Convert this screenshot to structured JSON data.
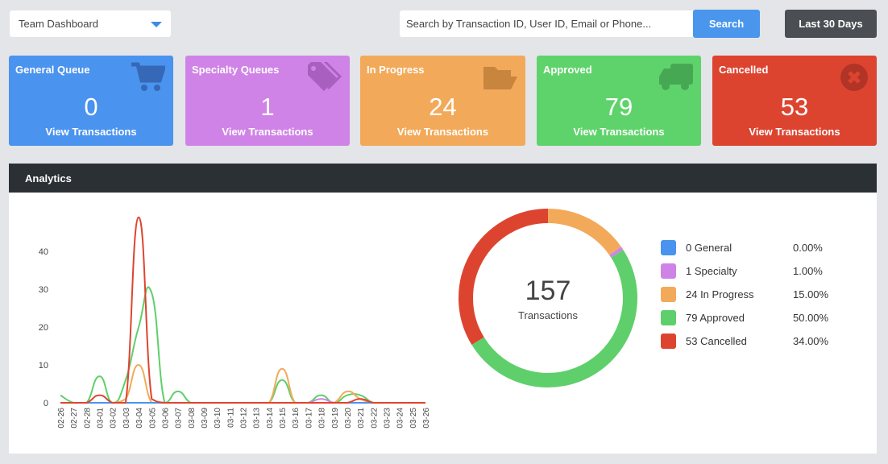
{
  "toolbar": {
    "dashboard_select": "Team Dashboard",
    "search_placeholder": "Search by Transaction ID, User ID, Email or Phone...",
    "search_button": "Search",
    "range_button": "Last 30 Days"
  },
  "cards": [
    {
      "title": "General Queue",
      "count": "0",
      "link": "View Transactions",
      "color": "#4a93ee",
      "icon": "cart-icon"
    },
    {
      "title": "Specialty Queues",
      "count": "1",
      "link": "View Transactions",
      "color": "#d083e6",
      "icon": "tags-icon"
    },
    {
      "title": "In Progress",
      "count": "24",
      "link": "View Transactions",
      "color": "#f2aa5a",
      "icon": "folder-open-icon"
    },
    {
      "title": "Approved",
      "count": "79",
      "link": "View Transactions",
      "color": "#5fd36b",
      "icon": "truck-icon"
    },
    {
      "title": "Cancelled",
      "count": "53",
      "link": "View Transactions",
      "color": "#dd4430",
      "icon": "times-circle-icon"
    }
  ],
  "analytics": {
    "title": "Analytics"
  },
  "donut": {
    "total": "157",
    "label": "Transactions"
  },
  "legend": [
    {
      "label": "0 General",
      "pct": "0.00%",
      "color": "#4a93ee"
    },
    {
      "label": "1 Specialty",
      "pct": "1.00%",
      "color": "#d083e6"
    },
    {
      "label": "24 In Progress",
      "pct": "15.00%",
      "color": "#f2aa5a"
    },
    {
      "label": "79 Approved",
      "pct": "50.00%",
      "color": "#5fcf6b"
    },
    {
      "label": "53 Cancelled",
      "pct": "34.00%",
      "color": "#dd4430"
    }
  ],
  "chart_data": [
    {
      "type": "line",
      "x": [
        "02-26",
        "02-27",
        "02-28",
        "03-01",
        "03-02",
        "03-03",
        "03-04",
        "03-05",
        "03-06",
        "03-07",
        "03-08",
        "03-09",
        "03-10",
        "03-11",
        "03-12",
        "03-13",
        "03-14",
        "03-15",
        "03-16",
        "03-17",
        "03-18",
        "03-19",
        "03-20",
        "03-21",
        "03-22",
        "03-23",
        "03-24",
        "03-25",
        "03-26"
      ],
      "yticks": [
        0,
        10,
        20,
        30,
        40
      ],
      "ylim": [
        0,
        50
      ],
      "grid": false,
      "series": [
        {
          "color": "#5fcf6b",
          "values": [
            2,
            0,
            0,
            7,
            0,
            6,
            20,
            29,
            0,
            3,
            0,
            0,
            0,
            0,
            0,
            0,
            0,
            6,
            0,
            0,
            2,
            0,
            2,
            2,
            0,
            0,
            0,
            0,
            0
          ]
        },
        {
          "color": "#f2aa5a",
          "values": [
            0,
            0,
            0,
            0,
            0,
            1,
            10,
            0,
            0,
            0,
            0,
            0,
            0,
            0,
            0,
            0,
            0,
            9,
            0,
            0,
            0,
            0,
            3,
            1,
            0,
            0,
            0,
            0,
            0
          ]
        },
        {
          "color": "#d083e6",
          "values": [
            0,
            0,
            0,
            0,
            0,
            0,
            0,
            0,
            0,
            0,
            0,
            0,
            0,
            0,
            0,
            0,
            0,
            0,
            0,
            0,
            1,
            0,
            0,
            0,
            0,
            0,
            0,
            0,
            0
          ]
        },
        {
          "color": "#4a93ee",
          "values": [
            0,
            0,
            0,
            0,
            0,
            0,
            0,
            0,
            0,
            0,
            0,
            0,
            0,
            0,
            0,
            0,
            0,
            0,
            0,
            0,
            0,
            0,
            0,
            0,
            0,
            0,
            0,
            0,
            0
          ]
        },
        {
          "color": "#dd4430",
          "values": [
            0,
            0,
            0,
            2,
            0,
            0,
            49,
            1,
            0,
            0,
            0,
            0,
            0,
            0,
            0,
            0,
            0,
            0,
            0,
            0,
            0,
            0,
            0,
            1,
            0,
            0,
            0,
            0,
            0
          ]
        }
      ]
    },
    {
      "type": "pie",
      "donut": true,
      "categories": [
        "General",
        "Specialty",
        "In Progress",
        "Approved",
        "Cancelled"
      ],
      "values": [
        0,
        1,
        24,
        79,
        53
      ],
      "colors": [
        "#4a93ee",
        "#d083e6",
        "#f2aa5a",
        "#5fcf6b",
        "#dd4430"
      ],
      "order_clockwise_from_top": [
        "In Progress",
        "Specialty",
        "Approved",
        "Cancelled"
      ]
    }
  ]
}
